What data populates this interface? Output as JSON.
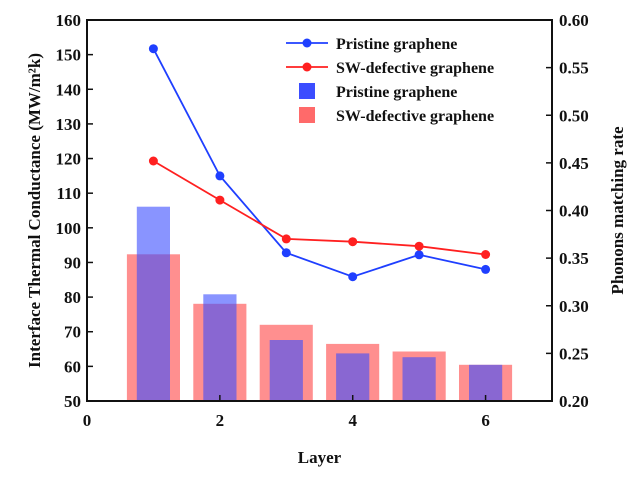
{
  "chart_data": {
    "type": "bar+line",
    "xlabel": "Layer",
    "ylabel_left": "Interface Thermal Conductance (MW/m²k)",
    "ylabel_right": "Phonons matching rate",
    "xlim": [
      0,
      7
    ],
    "ylim_left": [
      50,
      160
    ],
    "ylim_right": [
      0.2,
      0.6
    ],
    "x_ticks": [
      "0",
      "2",
      "4",
      "6"
    ],
    "y_left_ticks": [
      "50",
      "60",
      "70",
      "80",
      "90",
      "100",
      "110",
      "120",
      "130",
      "140",
      "150",
      "160"
    ],
    "y_right_ticks": [
      "0.20",
      "0.25",
      "0.30",
      "0.35",
      "0.40",
      "0.45",
      "0.50",
      "0.55",
      "0.60"
    ],
    "x": [
      1,
      2,
      3,
      4,
      5,
      6
    ],
    "lines": [
      {
        "name": "Pristine graphene",
        "color": "#1f3fff",
        "axis": "left",
        "values": [
          151.7,
          115.0,
          92.8,
          85.9,
          92.2,
          88.0
        ]
      },
      {
        "name": "SW-defective graphene",
        "color": "#ff2020",
        "axis": "left",
        "values": [
          119.3,
          108.0,
          96.8,
          96.0,
          94.7,
          92.3
        ]
      }
    ],
    "bars": [
      {
        "name": "Pristine graphene",
        "color": "#3b4dff",
        "axis": "right",
        "values": [
          0.404,
          0.312,
          0.264,
          0.25,
          0.246,
          0.238
        ]
      },
      {
        "name": "SW-defective graphene",
        "color": "#ff6a6a",
        "axis": "right",
        "values": [
          0.354,
          0.302,
          0.28,
          0.26,
          0.252,
          0.238
        ]
      }
    ],
    "legend_position": "top-right",
    "grid": false
  }
}
